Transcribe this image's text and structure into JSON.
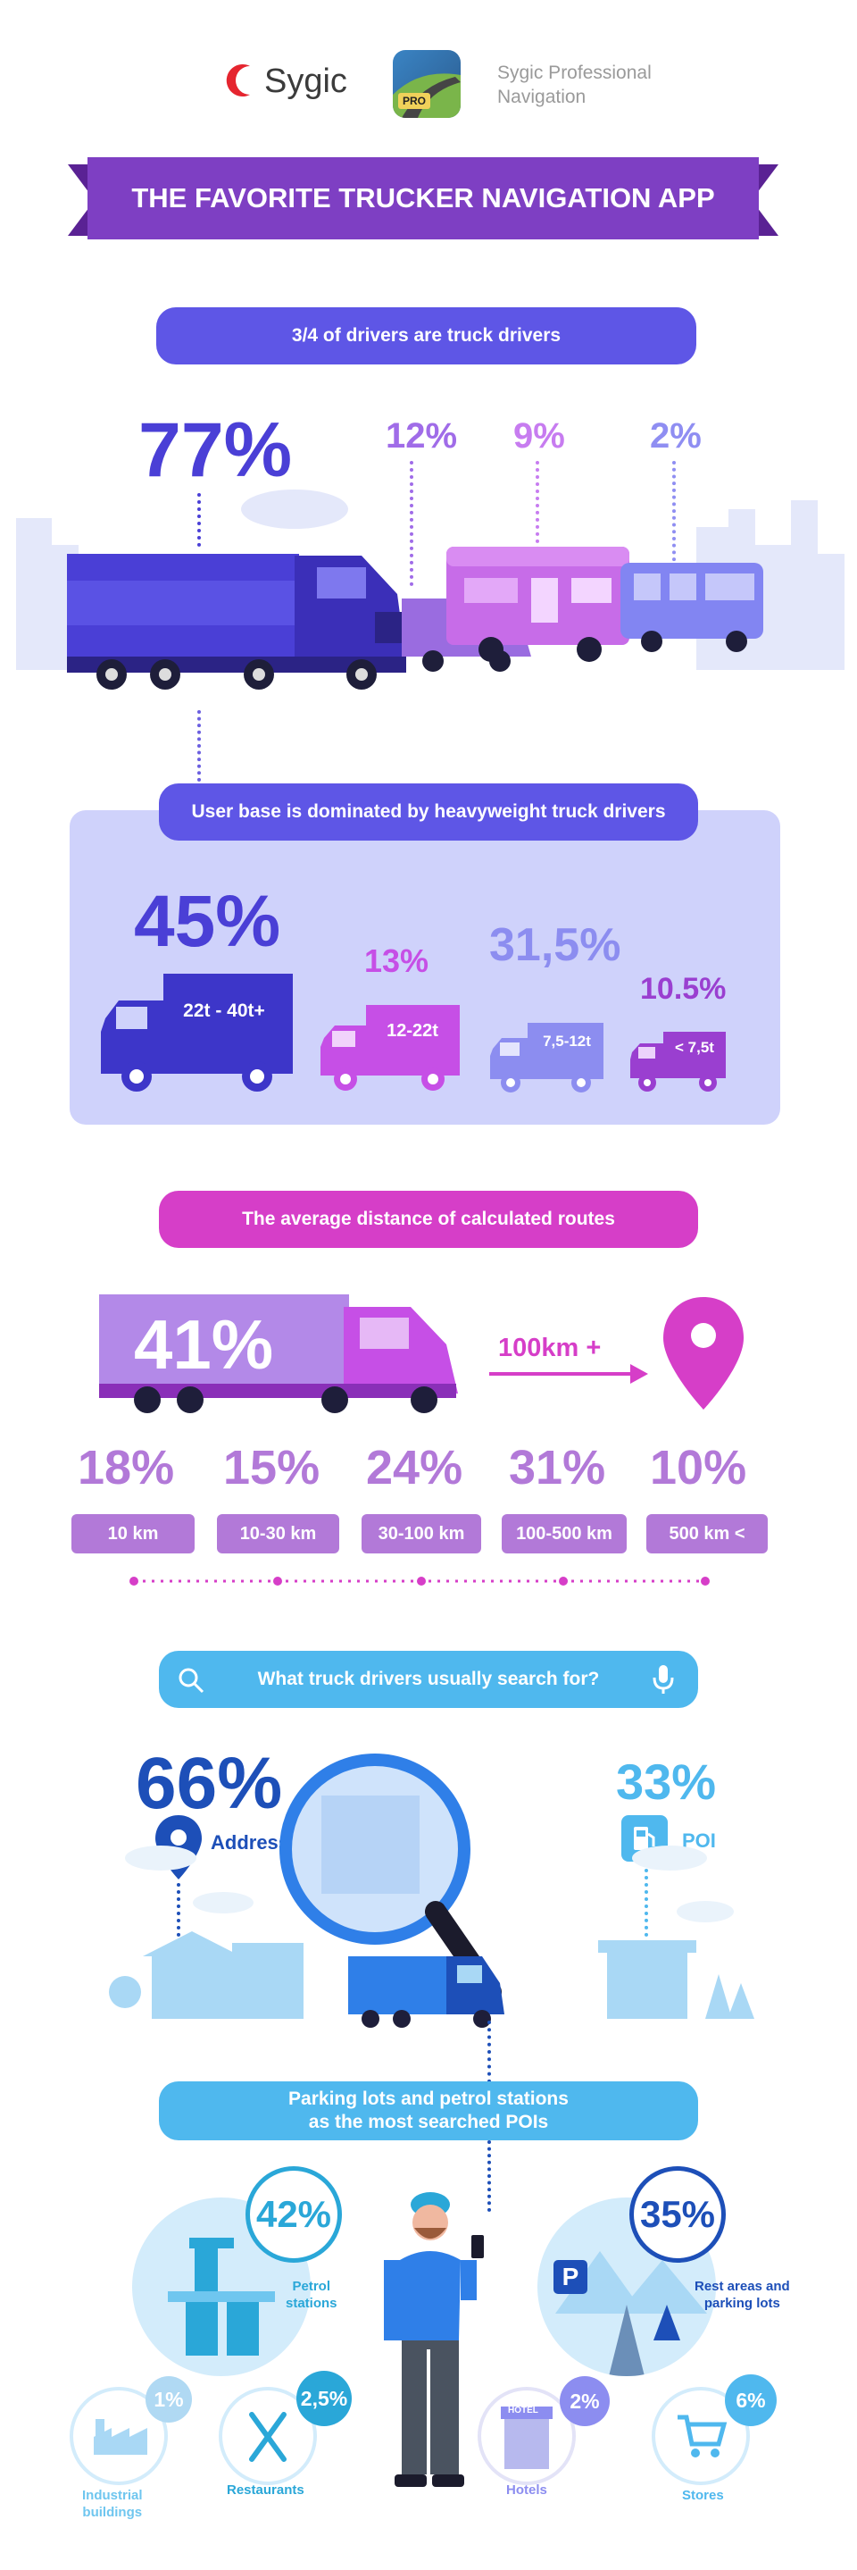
{
  "header": {
    "brand": "Sygic",
    "app_badge": "PRO",
    "app_name_line1": "Sygic Professional",
    "app_name_line2": "Navigation",
    "banner": "THE FAVORITE TRUCKER NAVIGATION APP"
  },
  "drivers": {
    "pill": "3/4 of drivers are truck drivers",
    "pct_truck": "77%",
    "pct_van": "12%",
    "pct_rv": "9%",
    "pct_bus": "2%"
  },
  "weight": {
    "pill": "User base is dominated by heavyweight truck drivers",
    "items": [
      {
        "pct": "45%",
        "label": "22t - 40t+"
      },
      {
        "pct": "13%",
        "label": "12-22t"
      },
      {
        "pct": "31,5%",
        "label": "7,5-12t"
      },
      {
        "pct": "10.5%",
        "label": "< 7,5t"
      }
    ]
  },
  "distance": {
    "pill": "The average distance of calculated routes",
    "big_pct": "41%",
    "arrow_label": "100km +",
    "items": [
      {
        "pct": "18%",
        "label": "10 km"
      },
      {
        "pct": "15%",
        "label": "10-30 km"
      },
      {
        "pct": "24%",
        "label": "30-100 km"
      },
      {
        "pct": "31%",
        "label": "100-500 km"
      },
      {
        "pct": "10%",
        "label": "500 km <"
      }
    ]
  },
  "search": {
    "pill": "What truck drivers usually search for?",
    "address_pct": "66%",
    "address_label": "Address",
    "poi_pct": "33%",
    "poi_label": "POI"
  },
  "pois": {
    "pill_line1": "Parking lots and petrol stations",
    "pill_line2": "as the most searched POIs",
    "petrol_pct": "42%",
    "petrol_label_1": "Petrol",
    "petrol_label_2": "stations",
    "rest_pct": "35%",
    "rest_label_1": "Rest areas and",
    "rest_label_2": "parking lots",
    "parking_sign": "P",
    "industrial_pct": "1%",
    "industrial_label_1": "Industrial",
    "industrial_label_2": "buildings",
    "restaurants_pct": "2,5%",
    "restaurants_label": "Restaurants",
    "hotels_pct": "2%",
    "hotels_label": "Hotels",
    "hotel_sign": "HOTEL",
    "stores_pct": "6%",
    "stores_label": "Stores"
  },
  "colors": {
    "purple_dark": "#6b2fa8",
    "indigo": "#4a3fd6",
    "violet": "#a06ce8",
    "magenta": "#d63ec8",
    "lilac": "#b279d8",
    "sky": "#4fb8ee",
    "navy": "#1d4fb8",
    "teal": "#2aa7d8"
  }
}
